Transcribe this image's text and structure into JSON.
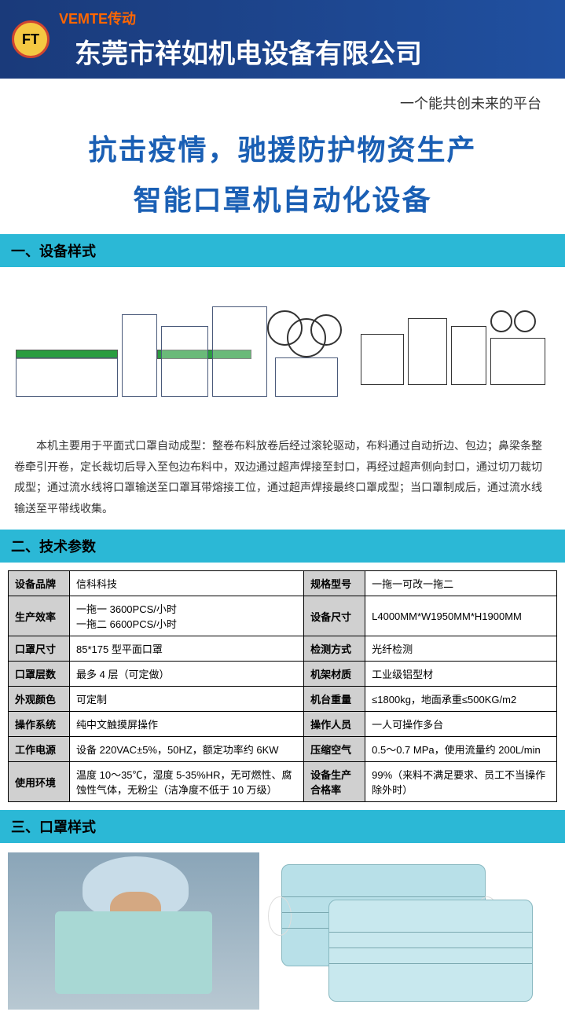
{
  "header": {
    "logo_text": "FT",
    "brand": "VEMTE传动",
    "company": "东莞市祥如机电设备有限公司"
  },
  "banner": {
    "platform": "一个能共创未来的平台",
    "title_line1": "抗击疫情，驰援防护物资生产",
    "title_line2": "智能口罩机自动化设备"
  },
  "sections": {
    "s1": "一、设备样式",
    "s2": "二、技术参数",
    "s3": "三、口罩样式"
  },
  "description": "本机主要用于平面式口罩自动成型：整卷布料放卷后经过滚轮驱动，布料通过自动折边、包边；鼻梁条整卷牵引开卷，定长裁切后导入至包边布料中，双边通过超声焊接至封口，再经过超声侧向封口，通过切刀裁切成型；通过流水线将口罩输送至口罩耳带熔接工位，通过超声焊接最终口罩成型；当口罩制成后，通过流水线输送至平带线收集。",
  "specs": {
    "rows": [
      {
        "l1": "设备品牌",
        "v1": "信科科技",
        "l2": "规格型号",
        "v2": "一拖一可改一拖二"
      },
      {
        "l1": "生产效率",
        "v1": "一拖一 3600PCS/小时\n一拖二 6600PCS/小时",
        "l2": "设备尺寸",
        "v2": "L4000MM*W1950MM*H1900MM"
      },
      {
        "l1": "口罩尺寸",
        "v1": "85*175 型平面口罩",
        "l2": "检测方式",
        "v2": "光纤检测"
      },
      {
        "l1": "口罩层数",
        "v1": "最多 4 层（可定做）",
        "l2": "机架材质",
        "v2": "工业级铝型材"
      },
      {
        "l1": "外观颜色",
        "v1": "可定制",
        "l2": "机台重量",
        "v2": "≤1800kg，地面承重≤500KG/m2"
      },
      {
        "l1": "操作系统",
        "v1": "纯中文触摸屏操作",
        "l2": "操作人员",
        "v2": "一人可操作多台"
      },
      {
        "l1": "工作电源",
        "v1": "设备 220VAC±5%，50HZ，额定功率约 6KW",
        "l2": "压缩空气",
        "v2": "0.5～0.7 MPa，使用流量约 200L/min"
      },
      {
        "l1": "使用环境",
        "v1": "温度 10～35℃，湿度 5-35%HR，无可燃性、腐蚀性气体，无粉尘（洁净度不低于 10 万级）",
        "l2": "设备生产合格率",
        "v2": "99%（来料不满足要求、员工不当操作除外时）"
      }
    ]
  },
  "colors": {
    "header_bg": "#1a3a7a",
    "section_bg": "#2bb8d6",
    "title_color": "#1a5fb4",
    "table_label_bg": "#d0d0d0",
    "conveyor_green": "#2a9d3f"
  }
}
